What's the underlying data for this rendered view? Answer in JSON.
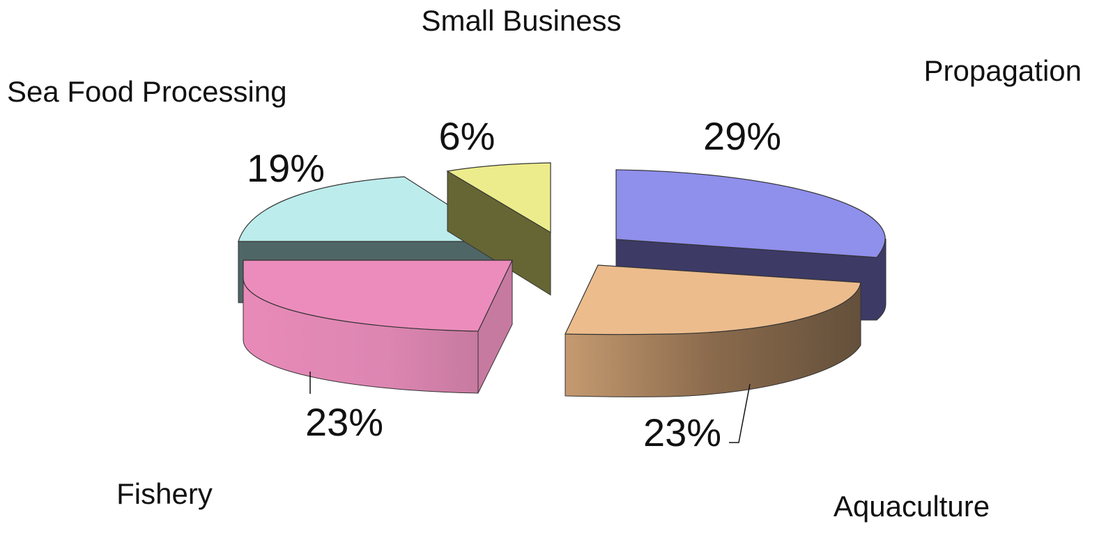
{
  "chart_data": {
    "type": "pie",
    "title": "",
    "slices": [
      {
        "label": "Propagation",
        "value": 29,
        "value_label": "29%",
        "color": "#8f8fec",
        "side_color": "#3d3a66"
      },
      {
        "label": "Aquaculture",
        "value": 23,
        "value_label": "23%",
        "color": "#ecbc8c",
        "side_color": "#8a6a4c"
      },
      {
        "label": "Fishery",
        "value": 23,
        "value_label": "23%",
        "color": "#ec8cbc",
        "side_color": "#cf78a4"
      },
      {
        "label": "Sea Food Processing",
        "value": 19,
        "value_label": "19%",
        "color": "#bcecec",
        "side_color": "#4f6666"
      },
      {
        "label": "Small Business",
        "value": 6,
        "value_label": "6%",
        "color": "#ecec8c",
        "side_color": "#666635"
      }
    ],
    "exploded": true,
    "three_d": true,
    "legend": "none"
  }
}
